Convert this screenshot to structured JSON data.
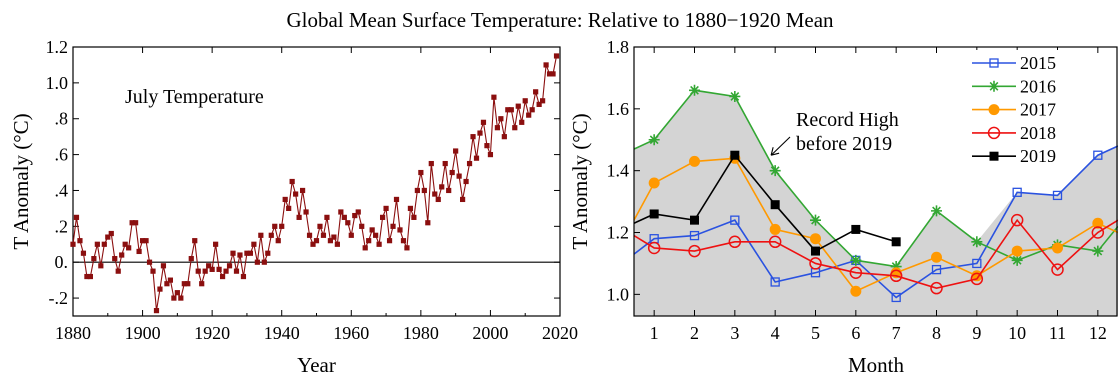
{
  "figure": {
    "title": "Global Mean Surface Temperature: Relative to 1880−1920 Mean"
  },
  "chart_data": [
    {
      "type": "line",
      "title": "",
      "annotation": "July Temperature",
      "xlabel": "Year",
      "ylabel": "T Anomaly (°C)",
      "xlim": [
        1880,
        2020
      ],
      "ylim": [
        -0.3,
        1.2
      ],
      "xticks": [
        1880,
        1900,
        1920,
        1940,
        1960,
        1980,
        2000,
        2020
      ],
      "xtick_labels": [
        "1880",
        "1900",
        "1920",
        "1940",
        "1960",
        "1980",
        "2000",
        "2020"
      ],
      "yticks": [
        -0.2,
        0,
        0.2,
        0.4,
        0.6,
        0.8,
        1.0,
        1.2
      ],
      "ytick_labels": [
        "-.2",
        "0.",
        ".2",
        ".4",
        ".6",
        ".8",
        "1.0",
        "1.2"
      ],
      "zero_line": true,
      "grid": false,
      "color": "#8b0f0f",
      "marker": "square",
      "x": [
        1880,
        1881,
        1882,
        1883,
        1884,
        1885,
        1886,
        1887,
        1888,
        1889,
        1890,
        1891,
        1892,
        1893,
        1894,
        1895,
        1896,
        1897,
        1898,
        1899,
        1900,
        1901,
        1902,
        1903,
        1904,
        1905,
        1906,
        1907,
        1908,
        1909,
        1910,
        1911,
        1912,
        1913,
        1914,
        1915,
        1916,
        1917,
        1918,
        1919,
        1920,
        1921,
        1922,
        1923,
        1924,
        1925,
        1926,
        1927,
        1928,
        1929,
        1930,
        1931,
        1932,
        1933,
        1934,
        1935,
        1936,
        1937,
        1938,
        1939,
        1940,
        1941,
        1942,
        1943,
        1944,
        1945,
        1946,
        1947,
        1948,
        1949,
        1950,
        1951,
        1952,
        1953,
        1954,
        1955,
        1956,
        1957,
        1958,
        1959,
        1960,
        1961,
        1962,
        1963,
        1964,
        1965,
        1966,
        1967,
        1968,
        1969,
        1970,
        1971,
        1972,
        1973,
        1974,
        1975,
        1976,
        1977,
        1978,
        1979,
        1980,
        1981,
        1982,
        1983,
        1984,
        1985,
        1986,
        1987,
        1988,
        1989,
        1990,
        1991,
        1992,
        1993,
        1994,
        1995,
        1996,
        1997,
        1998,
        1999,
        2000,
        2001,
        2002,
        2003,
        2004,
        2005,
        2006,
        2007,
        2008,
        2009,
        2010,
        2011,
        2012,
        2013,
        2014,
        2015,
        2016,
        2017,
        2018,
        2019
      ],
      "y": [
        0.1,
        0.25,
        0.12,
        0.05,
        -0.08,
        -0.08,
        0.02,
        0.1,
        -0.02,
        0.1,
        0.14,
        0.16,
        0.02,
        -0.05,
        0.04,
        0.1,
        0.08,
        0.22,
        0.22,
        0.06,
        0.12,
        0.12,
        0.0,
        -0.05,
        -0.27,
        -0.15,
        -0.02,
        -0.12,
        -0.1,
        -0.2,
        -0.17,
        -0.2,
        -0.12,
        -0.12,
        0.02,
        0.12,
        -0.05,
        -0.12,
        -0.05,
        -0.02,
        -0.04,
        0.1,
        -0.04,
        -0.08,
        -0.05,
        -0.02,
        0.05,
        -0.05,
        0.04,
        -0.08,
        0.05,
        0.05,
        0.1,
        0.0,
        0.15,
        0.0,
        0.05,
        0.15,
        0.2,
        0.12,
        0.2,
        0.35,
        0.3,
        0.45,
        0.38,
        0.25,
        0.4,
        0.28,
        0.15,
        0.1,
        0.12,
        0.2,
        0.15,
        0.25,
        0.12,
        0.14,
        0.1,
        0.28,
        0.25,
        0.22,
        0.15,
        0.26,
        0.28,
        0.2,
        0.08,
        0.12,
        0.18,
        0.15,
        0.1,
        0.25,
        0.3,
        0.12,
        0.2,
        0.35,
        0.18,
        0.12,
        0.08,
        0.3,
        0.25,
        0.4,
        0.5,
        0.4,
        0.22,
        0.55,
        0.38,
        0.35,
        0.42,
        0.55,
        0.4,
        0.5,
        0.62,
        0.48,
        0.35,
        0.45,
        0.55,
        0.7,
        0.58,
        0.72,
        0.78,
        0.65,
        0.6,
        0.92,
        0.75,
        0.8,
        0.7,
        0.85,
        0.85,
        0.75,
        0.87,
        0.78,
        0.9,
        0.82,
        0.85,
        0.95,
        0.88,
        0.9,
        1.1,
        1.05,
        1.05,
        1.15
      ]
    },
    {
      "type": "line",
      "title": "",
      "xlabel": "Month",
      "ylabel": "T Anomaly (°C)",
      "xlim": [
        0.5,
        12.5
      ],
      "ylim": [
        0.93,
        1.8
      ],
      "xticks": [
        1,
        2,
        3,
        4,
        5,
        6,
        7,
        8,
        9,
        10,
        11,
        12
      ],
      "xtick_labels": [
        "1",
        "2",
        "3",
        "4",
        "5",
        "6",
        "7",
        "8",
        "9",
        "10",
        "11",
        "12"
      ],
      "yticks": [
        1.0,
        1.2,
        1.4,
        1.6,
        1.8
      ],
      "ytick_labels": [
        "1.0",
        "1.2",
        "1.4",
        "1.6",
        "1.8"
      ],
      "legend_position": "top-right",
      "grid": false,
      "record_high_fill": {
        "color": "#d4d4d4",
        "x": [
          0.5,
          1,
          2,
          3,
          4,
          5,
          6,
          7,
          8,
          9,
          10,
          11,
          12,
          12.5
        ],
        "y": [
          1.47,
          1.5,
          1.66,
          1.64,
          1.4,
          1.24,
          1.11,
          1.09,
          1.27,
          1.17,
          1.33,
          1.32,
          1.45,
          1.48
        ]
      },
      "annotation": {
        "lines": [
          "Record High",
          "before 2019"
        ],
        "arrow_to": [
          3.9,
          1.45
        ]
      },
      "series": [
        {
          "name": "2015",
          "color": "#2a52e0",
          "marker": "square-open",
          "x": [
            0.5,
            1,
            2,
            3,
            4,
            5,
            6,
            7,
            8,
            9,
            10,
            11,
            12,
            12.5
          ],
          "y": [
            1.13,
            1.18,
            1.19,
            1.24,
            1.04,
            1.07,
            1.11,
            0.99,
            1.08,
            1.1,
            1.33,
            1.32,
            1.45,
            1.48
          ]
        },
        {
          "name": "2016",
          "color": "#33a733",
          "marker": "asterisk",
          "x": [
            0.5,
            1,
            2,
            3,
            4,
            5,
            6,
            7,
            8,
            9,
            10,
            11,
            12,
            12.5
          ],
          "y": [
            1.47,
            1.5,
            1.66,
            1.64,
            1.4,
            1.24,
            1.11,
            1.09,
            1.27,
            1.17,
            1.11,
            1.16,
            1.14,
            1.22
          ]
        },
        {
          "name": "2017",
          "color": "#ff9900",
          "marker": "circle-filled",
          "x": [
            0.5,
            1,
            2,
            3,
            4,
            5,
            6,
            7,
            8,
            9,
            10,
            11,
            12,
            12.5
          ],
          "y": [
            1.24,
            1.36,
            1.43,
            1.44,
            1.21,
            1.18,
            1.01,
            1.07,
            1.12,
            1.06,
            1.14,
            1.15,
            1.23,
            1.2
          ]
        },
        {
          "name": "2018",
          "color": "#ee1111",
          "marker": "circle-open",
          "x": [
            0.5,
            1,
            2,
            3,
            4,
            5,
            6,
            7,
            8,
            9,
            10,
            11,
            12,
            12.5
          ],
          "y": [
            1.19,
            1.15,
            1.14,
            1.17,
            1.17,
            1.1,
            1.07,
            1.06,
            1.02,
            1.05,
            1.24,
            1.08,
            1.2,
            1.24
          ]
        },
        {
          "name": "2019",
          "color": "#000000",
          "marker": "square-filled",
          "x": [
            0.5,
            1,
            2,
            3,
            4,
            5,
            6,
            7
          ],
          "y": [
            1.23,
            1.26,
            1.24,
            1.45,
            1.29,
            1.14,
            1.21,
            1.17
          ]
        }
      ]
    }
  ]
}
